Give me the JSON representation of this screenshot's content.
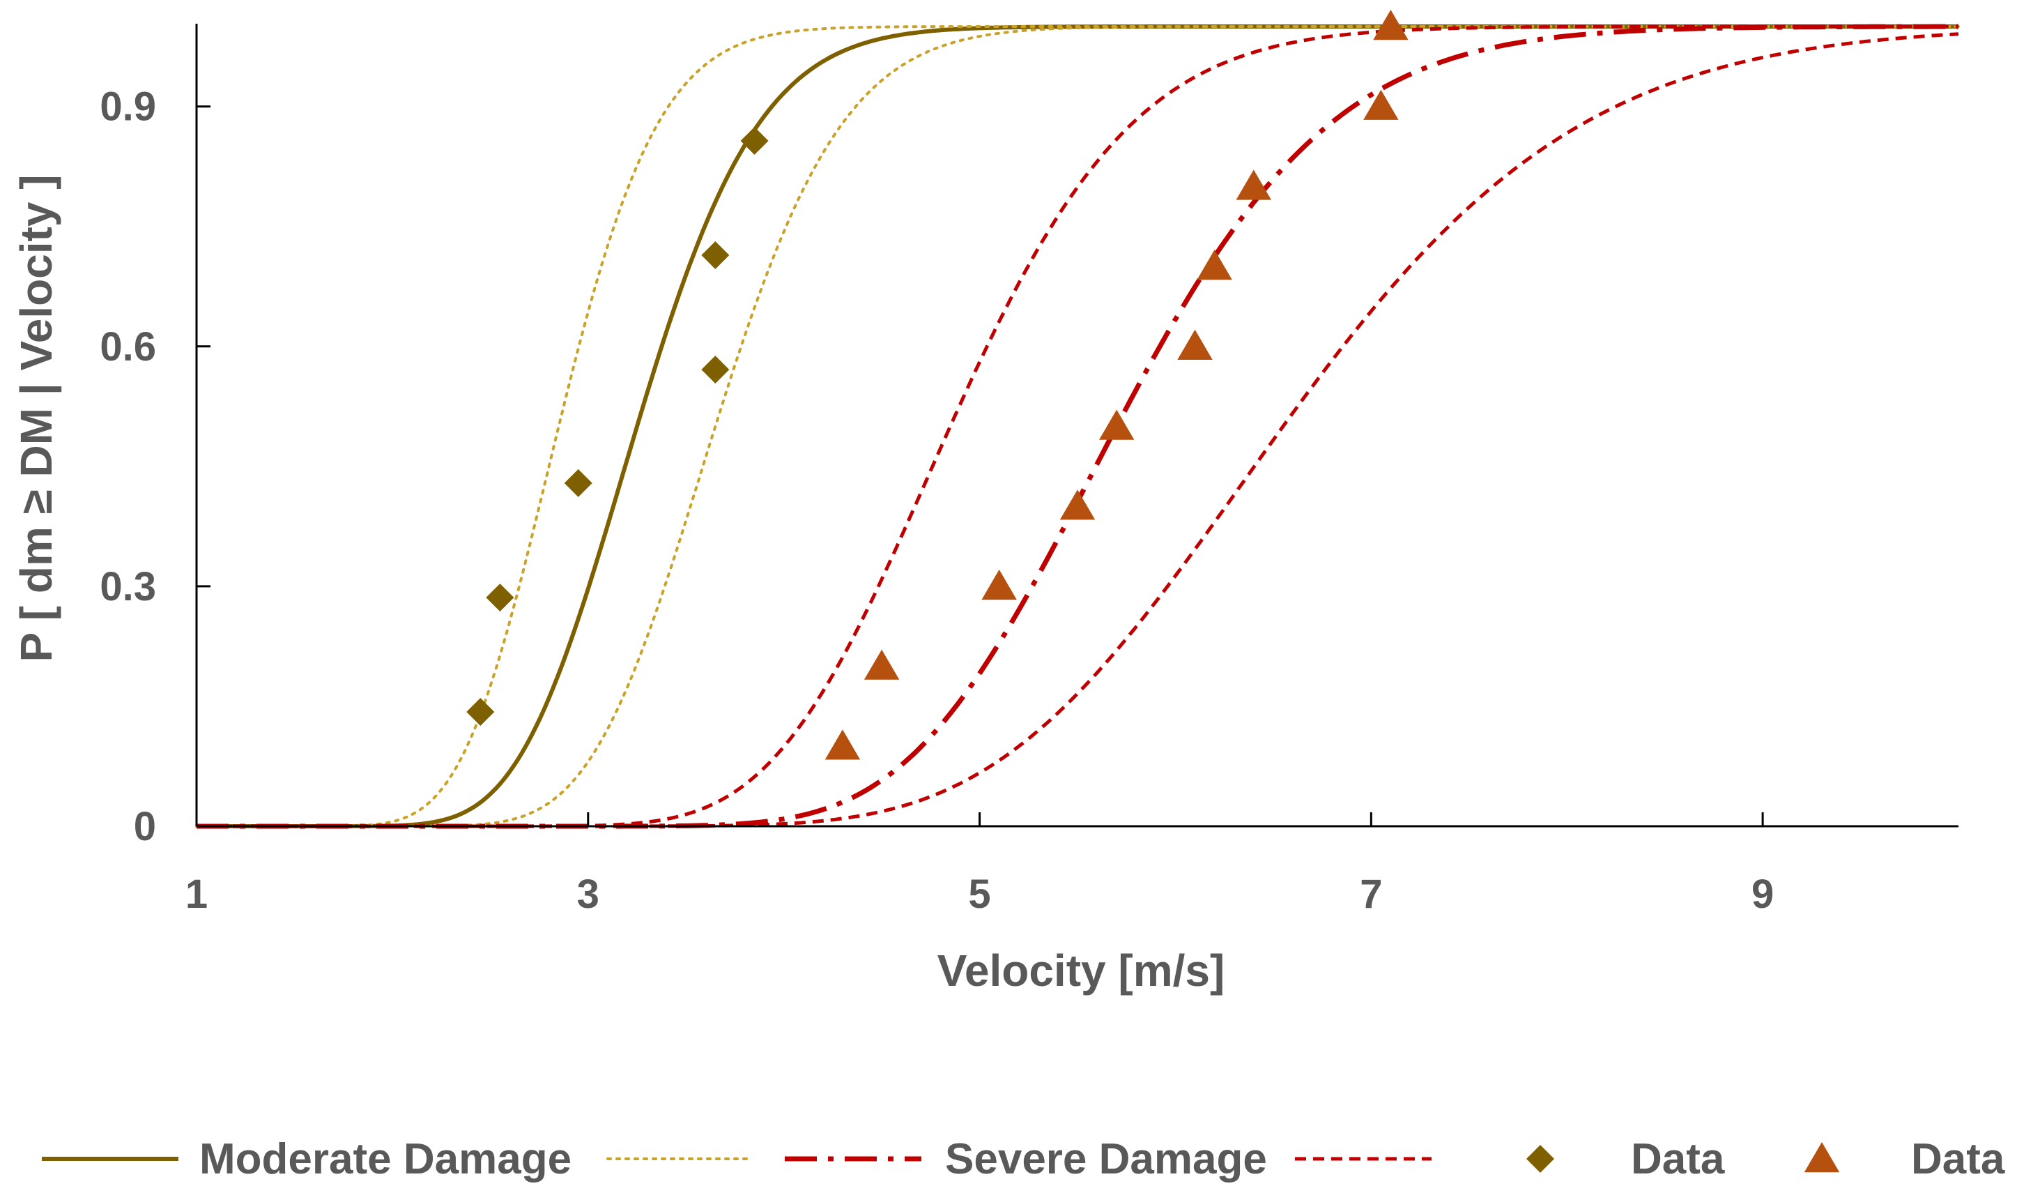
{
  "chart_data": {
    "type": "line",
    "title": "",
    "xlabel": "Velocity [m/s]",
    "ylabel": "P [ dm ≥ DM | Velocity ]",
    "xlim": [
      1,
      10
    ],
    "ylim": [
      0,
      1
    ],
    "x_ticks": [
      1,
      3,
      5,
      7,
      9
    ],
    "x_tick_labels": [
      "1",
      "3",
      "5",
      "7",
      "9"
    ],
    "y_ticks": [
      0,
      0.3,
      0.6,
      0.9
    ],
    "y_tick_labels": [
      "0",
      "0.3",
      "0.6",
      "0.9"
    ],
    "grid": false,
    "legend_position": "bottom",
    "colors": {
      "moderate": "#7f6000",
      "moderate_bound": "#c9a227",
      "severe": "#c00000",
      "data_moderate": "#7f6000",
      "data_severe": "#b5500f",
      "axis": "#000000"
    },
    "series": [
      {
        "name": "Moderate Damage",
        "kind": "lognormal_cdf",
        "median": 3.25,
        "beta": 0.15,
        "style": "solid",
        "color_key": "moderate"
      },
      {
        "name": "",
        "kind": "lognormal_cdf",
        "median": 2.85,
        "beta": 0.14,
        "style": "dotted",
        "color_key": "moderate_bound"
      },
      {
        "name": "",
        "kind": "lognormal_cdf",
        "median": 3.65,
        "beta": 0.14,
        "style": "dotted",
        "color_key": "moderate_bound"
      },
      {
        "name": "Severe Damage",
        "kind": "lognormal_cdf",
        "median": 5.7,
        "beta": 0.15,
        "style": "dashdot",
        "color_key": "severe"
      },
      {
        "name": "",
        "kind": "lognormal_cdf",
        "median": 4.85,
        "beta": 0.15,
        "style": "dashed",
        "color_key": "severe"
      },
      {
        "name": "",
        "kind": "lognormal_cdf",
        "median": 6.55,
        "beta": 0.18,
        "style": "dashed",
        "color_key": "severe"
      }
    ],
    "scatter": [
      {
        "name": "Data",
        "marker": "diamond",
        "color_key": "data_moderate",
        "points": [
          [
            2.45,
            0.143
          ],
          [
            2.55,
            0.286
          ],
          [
            2.95,
            0.429
          ],
          [
            3.65,
            0.571
          ],
          [
            3.65,
            0.714
          ],
          [
            3.85,
            0.857
          ]
        ]
      },
      {
        "name": "Data",
        "marker": "triangle",
        "color_key": "data_severe",
        "points": [
          [
            4.3,
            0.1
          ],
          [
            4.5,
            0.2
          ],
          [
            5.1,
            0.3
          ],
          [
            5.5,
            0.4
          ],
          [
            5.7,
            0.5
          ],
          [
            6.1,
            0.6
          ],
          [
            6.2,
            0.7
          ],
          [
            6.4,
            0.8
          ],
          [
            7.05,
            0.9
          ],
          [
            7.1,
            1.0
          ]
        ]
      }
    ],
    "legend": [
      {
        "label": "Moderate Damage",
        "style": "solid",
        "color_key": "moderate"
      },
      {
        "label": "",
        "style": "dotted",
        "color_key": "moderate_bound"
      },
      {
        "label": "Severe Damage",
        "style": "dashdot",
        "color_key": "severe"
      },
      {
        "label": "",
        "style": "dashed",
        "color_key": "severe"
      },
      {
        "label": "Data",
        "style": "diamond",
        "color_key": "data_moderate"
      },
      {
        "label": "Data",
        "style": "triangle",
        "color_key": "data_severe"
      }
    ]
  }
}
